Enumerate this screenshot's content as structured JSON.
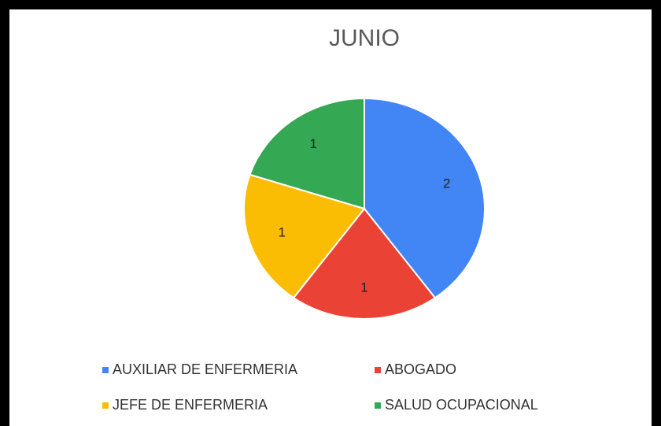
{
  "chart_data": {
    "type": "pie",
    "title": "JUNIO",
    "categories": [
      "AUXILIAR DE ENFERMERIA",
      "ABOGADO",
      "JEFE DE ENFERMERIA",
      "SALUD OCUPACIONAL"
    ],
    "values": [
      2,
      1,
      1,
      1
    ],
    "colors": [
      "#4285f4",
      "#ea4335",
      "#fbbc04",
      "#34a853"
    ],
    "legend": "bottom"
  }
}
